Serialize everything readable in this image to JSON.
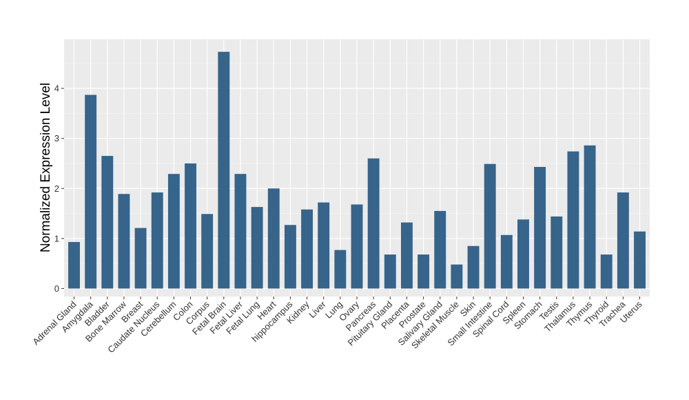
{
  "chart_data": {
    "type": "bar",
    "title": "",
    "xlabel": "",
    "ylabel": "Normalized Expression Level",
    "ylim": [
      -0.16,
      4.98
    ],
    "yticks": [
      0,
      1,
      2,
      3,
      4
    ],
    "grid": true,
    "bar_color": "#36648b",
    "panel_color": "#ebebeb",
    "categories": [
      "Adrenal Gland",
      "Amygdala",
      "Bladder",
      "Bone Marrow",
      "Breast",
      "Caudate Nucleus",
      "Cerebellum",
      "Colon",
      "Corpus",
      "Fetal Brain",
      "Fetal Liver",
      "Fetal Lung",
      "Heart",
      "hippocampus",
      "Kidney",
      "Liver",
      "Lung",
      "Ovary",
      "Pancreas",
      "Pituitary Gland",
      "Placenta",
      "Prostate",
      "Salivary Gland",
      "Skeletal Muscle",
      "Skin",
      "Small Intestine",
      "Spinal Cord",
      "Spleen",
      "Stomach",
      "Testis",
      "Thalamus",
      "Thymus",
      "Thyroid",
      "Trachea",
      "Uterus"
    ],
    "values": [
      0.93,
      3.87,
      2.65,
      1.89,
      1.21,
      1.92,
      2.29,
      2.5,
      1.49,
      4.73,
      2.29,
      1.63,
      2.0,
      1.27,
      1.58,
      1.72,
      0.77,
      1.68,
      2.6,
      0.68,
      1.32,
      0.68,
      1.55,
      0.48,
      0.85,
      2.49,
      1.07,
      1.38,
      2.43,
      1.44,
      2.74,
      2.86,
      0.68,
      1.92,
      1.14
    ]
  }
}
